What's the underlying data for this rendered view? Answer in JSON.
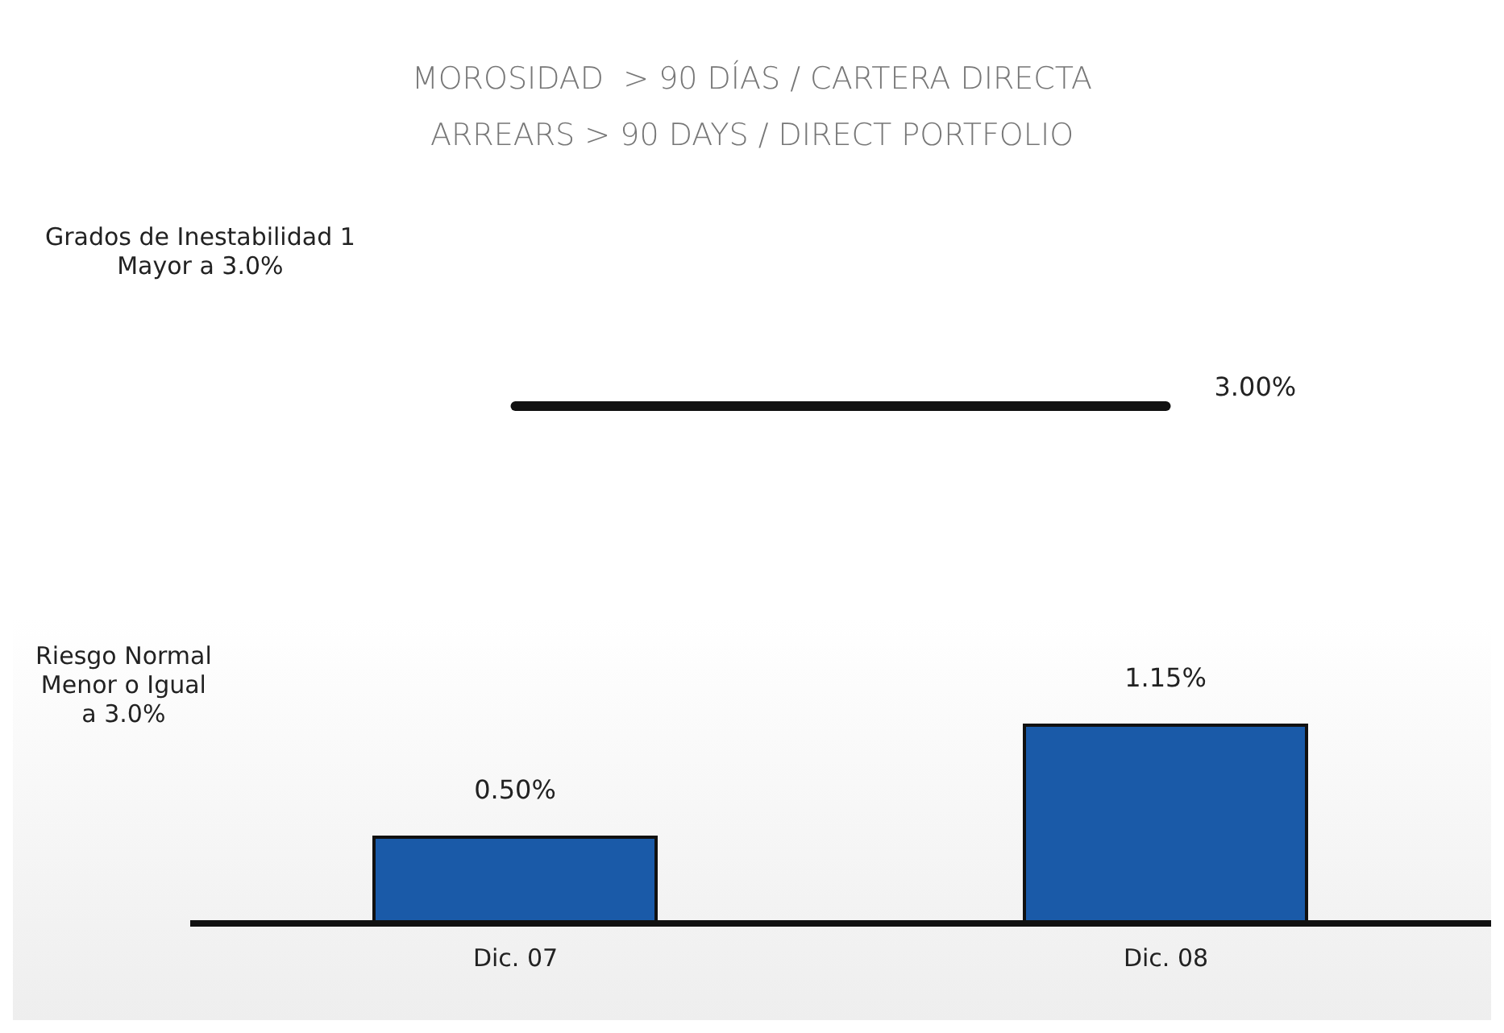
{
  "chart_data": {
    "type": "bar",
    "title": "MOROSIDAD  > 90 DÍAS / CARTERA DIRECTA",
    "subtitle": "ARREARS > 90 DAYS / DIRECT PORTFOLIO",
    "categories": [
      "Dic. 07",
      "Dic. 08"
    ],
    "values": [
      0.5,
      1.15
    ],
    "value_labels": [
      "0.50%",
      "1.15%"
    ],
    "color": "#1a5aa8",
    "ref_lines": [
      {
        "axis": "y",
        "value": 3,
        "label": "3.00%",
        "color": "#111111"
      }
    ],
    "annotations": [
      "Grados de Inestabilidad 1\nMayor a 3.0%",
      "Riesgo Normal\nMenor o Igual\na 3.0%"
    ],
    "grid": false,
    "legend": false
  }
}
